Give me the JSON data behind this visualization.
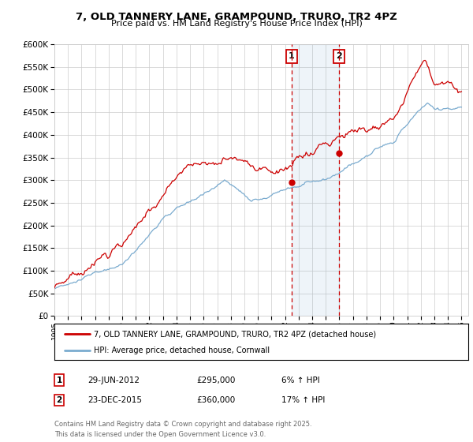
{
  "title": "7, OLD TANNERY LANE, GRAMPOUND, TRURO, TR2 4PZ",
  "subtitle": "Price paid vs. HM Land Registry's House Price Index (HPI)",
  "legend_line1": "7, OLD TANNERY LANE, GRAMPOUND, TRURO, TR2 4PZ (detached house)",
  "legend_line2": "HPI: Average price, detached house, Cornwall",
  "annotation1_date": "29-JUN-2012",
  "annotation1_price": "£295,000",
  "annotation1_hpi": "6% ↑ HPI",
  "annotation2_date": "23-DEC-2015",
  "annotation2_price": "£360,000",
  "annotation2_hpi": "17% ↑ HPI",
  "footer": "Contains HM Land Registry data © Crown copyright and database right 2025.\nThis data is licensed under the Open Government Licence v3.0.",
  "hpi_color": "#7aabcf",
  "price_color": "#cc0000",
  "annotation_color": "#cc0000",
  "background_color": "#ffffff",
  "grid_color": "#cccccc",
  "ylim": [
    0,
    600000
  ],
  "ytick_step": 50000,
  "sale1_year": 2012.49,
  "sale1_price": 295000,
  "sale2_year": 2015.98,
  "sale2_price": 360000
}
